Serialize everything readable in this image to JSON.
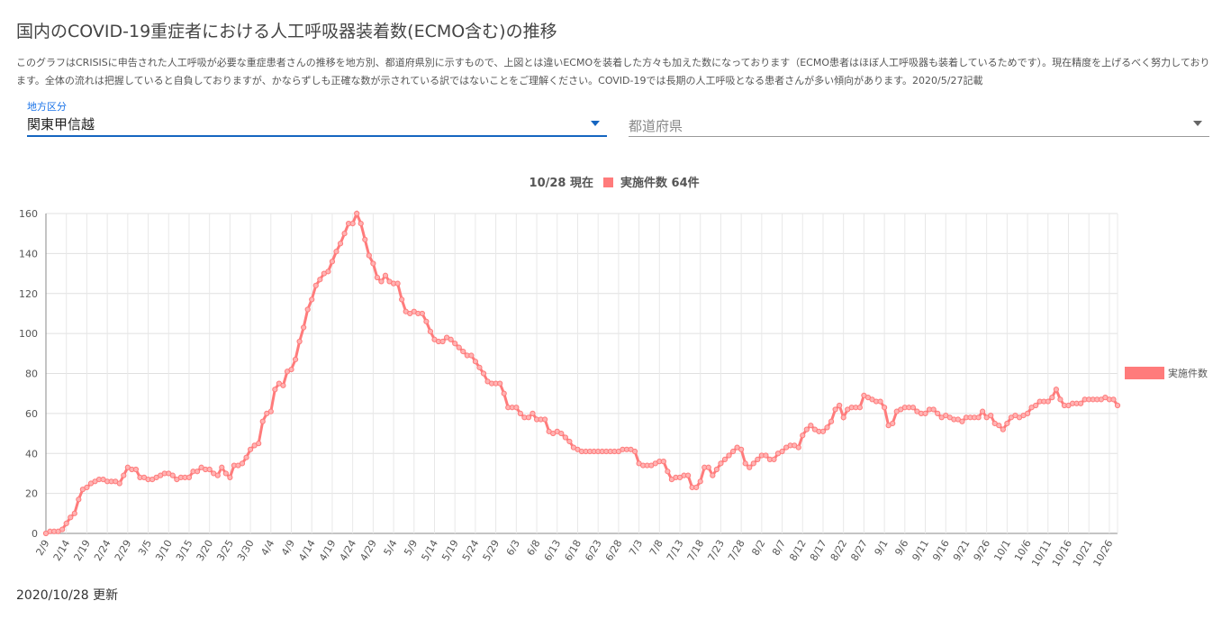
{
  "header": {
    "title": "国内のCOVID-19重症者における人工呼吸器装着数(ECMO含む)の推移",
    "description": "このグラフはCRISISに申告された人工呼吸が必要な重症患者さんの推移を地方別、都道府県別に示すもので、上図とは違いECMOを装着した方々も加えた数になっております（ECMO患者はほぼ人工呼吸器も装着しているためです）。現在精度を上げるべく努力しております。全体の流れは把握していると自負しておりますが、かならずしも正確な数が示されている訳ではないことをご理解ください。COVID-19では長期の人工呼吸となる患者さんが多い傾向があります。2020/5/27記載"
  },
  "filters": {
    "region": {
      "label": "地方区分",
      "value": "関東甲信越"
    },
    "prefecture": {
      "placeholder": "都道府県"
    }
  },
  "footer": {
    "updated": "2020/10/28 更新"
  },
  "chart_data": {
    "type": "line",
    "summary": {
      "date": "10/28 現在",
      "text": "実施件数 64件"
    },
    "legend": "実施件数",
    "series_color": "#ff7b7b",
    "ylim": [
      0,
      160
    ],
    "yticks": [
      0,
      20,
      40,
      60,
      80,
      100,
      120,
      140,
      160
    ],
    "xticks": [
      "2/9",
      "2/14",
      "2/19",
      "2/24",
      "2/29",
      "3/5",
      "3/10",
      "3/15",
      "3/20",
      "3/25",
      "3/30",
      "4/4",
      "4/9",
      "4/14",
      "4/19",
      "4/24",
      "4/29",
      "5/4",
      "5/9",
      "5/14",
      "5/19",
      "5/24",
      "5/29",
      "6/3",
      "6/8",
      "6/13",
      "6/18",
      "6/23",
      "6/28",
      "7/3",
      "7/8",
      "7/13",
      "7/18",
      "7/23",
      "7/28",
      "8/2",
      "8/7",
      "8/12",
      "8/17",
      "8/22",
      "8/27",
      "9/1",
      "9/6",
      "9/11",
      "9/16",
      "9/21",
      "9/26",
      "10/1",
      "10/6",
      "10/11",
      "10/16",
      "10/21",
      "10/26"
    ],
    "start_date": "2/9",
    "end_date": "10/28",
    "series": [
      {
        "name": "実施件数",
        "x_range": [
          "2/9",
          "10/28"
        ],
        "values": [
          0,
          1,
          1,
          1,
          2,
          5,
          8,
          10,
          17,
          22,
          23,
          25,
          26,
          27,
          27,
          26,
          26,
          26,
          25,
          29,
          33,
          32,
          32,
          28,
          28,
          27,
          27,
          28,
          29,
          30,
          30,
          29,
          27,
          28,
          28,
          28,
          31,
          31,
          33,
          32,
          32,
          30,
          29,
          33,
          30,
          28,
          34,
          34,
          35,
          38,
          42,
          44,
          45,
          56,
          60,
          61,
          72,
          75,
          74,
          81,
          82,
          87,
          96,
          103,
          112,
          117,
          124,
          127,
          130,
          131,
          136,
          141,
          145,
          150,
          155,
          155,
          160,
          155,
          147,
          139,
          135,
          128,
          126,
          129,
          126,
          125,
          125,
          117,
          111,
          110,
          111,
          110,
          110,
          106,
          101,
          97,
          96,
          96,
          98,
          97,
          95,
          93,
          91,
          89,
          89,
          86,
          83,
          80,
          76,
          75,
          75,
          75,
          70,
          63,
          63,
          63,
          60,
          58,
          58,
          60,
          57,
          57,
          57,
          51,
          50,
          51,
          50,
          48,
          46,
          43,
          42,
          41,
          41,
          41,
          41,
          41,
          41,
          41,
          41,
          41,
          41,
          42,
          42,
          42,
          41,
          35,
          34,
          34,
          34,
          35,
          36,
          36,
          31,
          27,
          28,
          28,
          29,
          29,
          23,
          23,
          26,
          33,
          33,
          29,
          32,
          35,
          37,
          39,
          41,
          43,
          42,
          35,
          33,
          35,
          37,
          39,
          39,
          37,
          37,
          40,
          41,
          43,
          44,
          44,
          43,
          49,
          52,
          54,
          52,
          51,
          51,
          53,
          56,
          62,
          64,
          58,
          62,
          63,
          63,
          63,
          69,
          68,
          67,
          66,
          66,
          63,
          54,
          55,
          61,
          62,
          63,
          63,
          63,
          61,
          60,
          60,
          62,
          62,
          60,
          58,
          59,
          58,
          57,
          57,
          56,
          58,
          58,
          58,
          58,
          61,
          58,
          59,
          55,
          54,
          52,
          55,
          58,
          59,
          58,
          59,
          60,
          63,
          64,
          66,
          66,
          66,
          68,
          72,
          67,
          64,
          64,
          65,
          65,
          65,
          67,
          67,
          67,
          67,
          67,
          68,
          67,
          67,
          64
        ]
      }
    ]
  }
}
